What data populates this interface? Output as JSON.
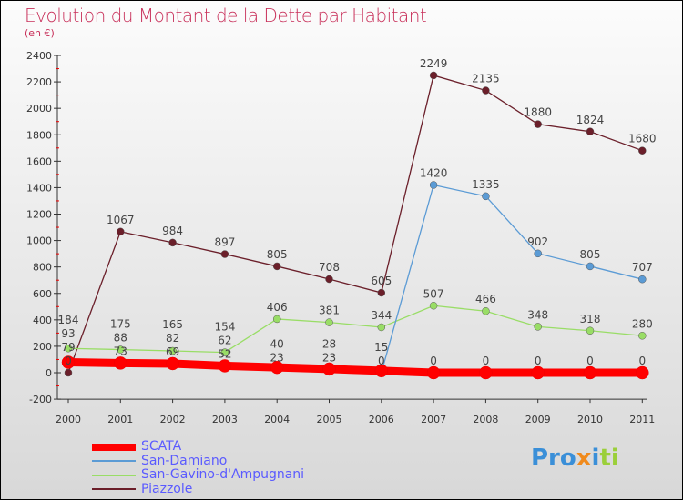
{
  "chart_data": {
    "type": "line",
    "title": "Evolution du Montant de la Dette par Habitant",
    "subtitle": "(en €)",
    "x": [
      "2000",
      "2001",
      "2002",
      "2003",
      "2004",
      "2005",
      "2006",
      "2007",
      "2008",
      "2009",
      "2010",
      "2011"
    ],
    "ylim": [
      -200,
      2400
    ],
    "yticks": [
      -200,
      0,
      200,
      400,
      600,
      800,
      1000,
      1200,
      1400,
      1600,
      1800,
      2000,
      2200,
      2400
    ],
    "series": [
      {
        "name": "SCATA",
        "color": "#ff0000",
        "values": [
          79,
          73,
          69,
          52,
          40,
          28,
          15,
          0,
          0,
          0,
          0,
          0
        ]
      },
      {
        "name": "San-Damiano",
        "color": "#5b9bd5",
        "values": [
          93,
          88,
          82,
          62,
          23,
          23,
          0,
          1420,
          1335,
          902,
          805,
          707
        ]
      },
      {
        "name": "San-Gavino-d'Ampugnani",
        "color": "#99dd66",
        "values": [
          184,
          175,
          165,
          154,
          406,
          381,
          344,
          507,
          466,
          348,
          318,
          280
        ]
      },
      {
        "name": "Piazzole",
        "color": "#6b1f2a",
        "values": [
          0,
          1067,
          984,
          897,
          805,
          708,
          605,
          2249,
          2135,
          1880,
          1824,
          1680
        ]
      }
    ],
    "legend": "bottom-left"
  },
  "logo": "Proxiti"
}
